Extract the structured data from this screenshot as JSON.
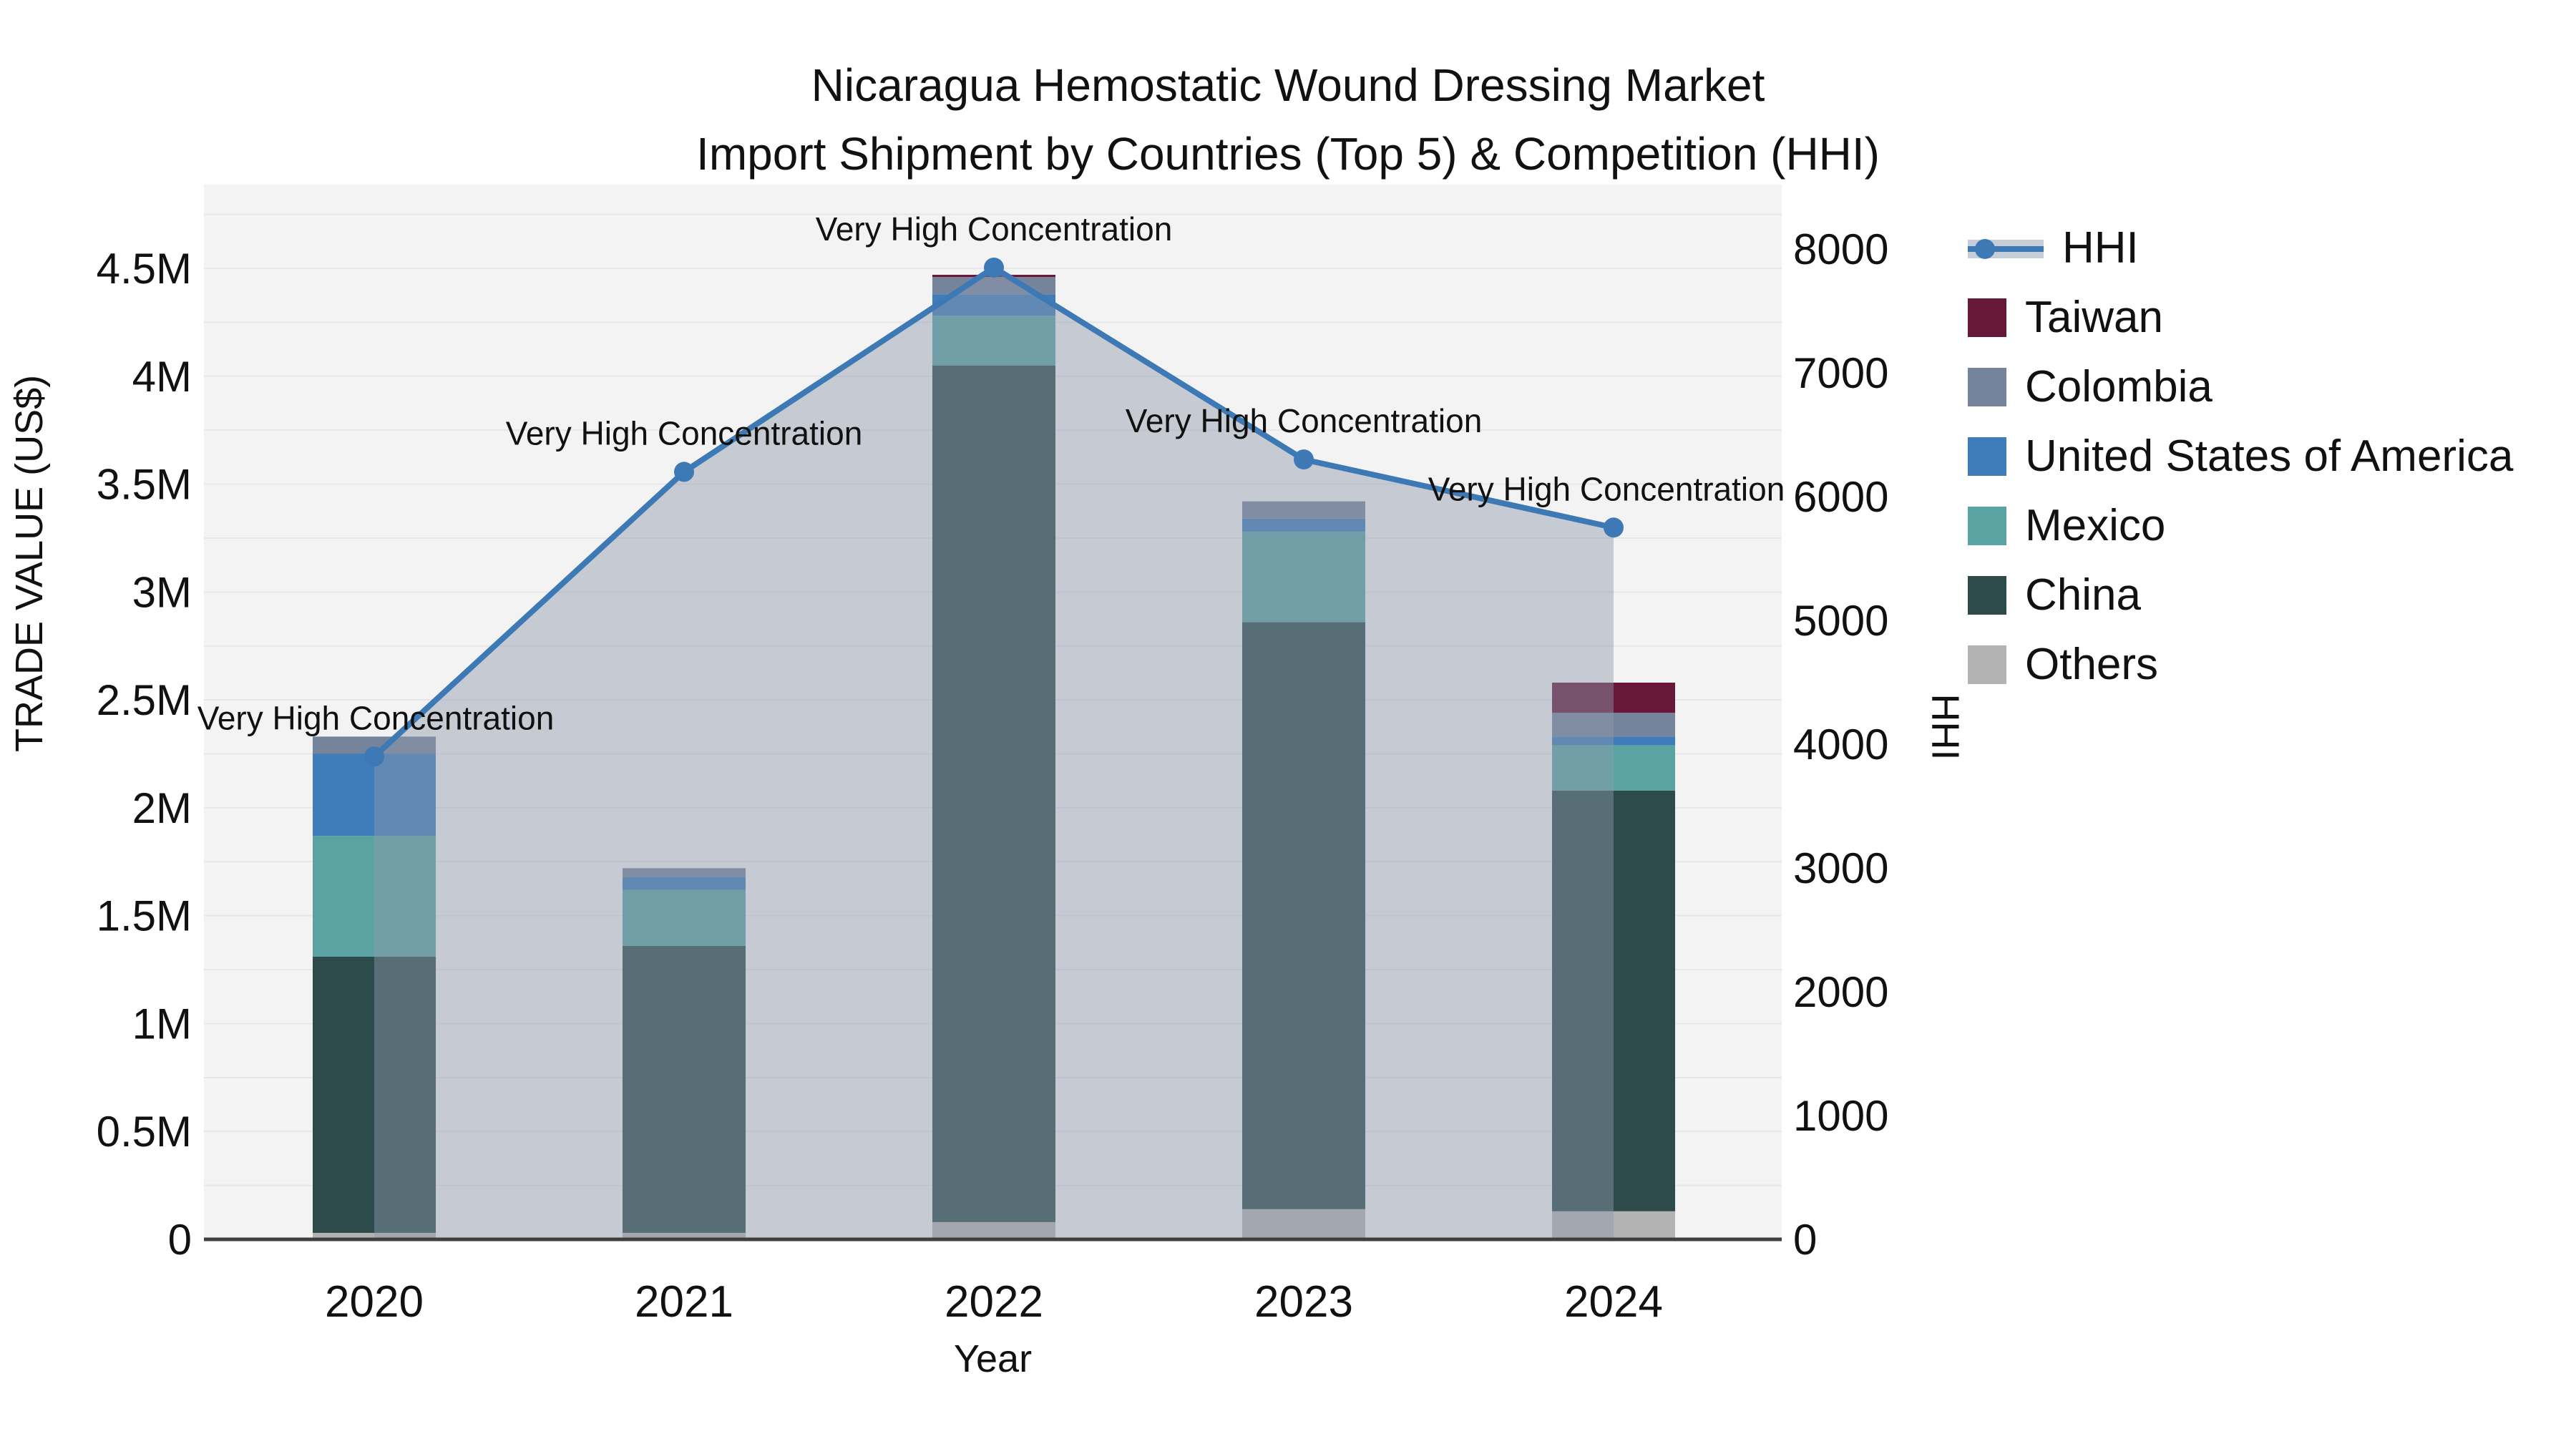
{
  "title": {
    "line1": "Nicaragua Hemostatic Wound Dressing Market",
    "line2": "Import Shipment by Countries (Top 5) & Competition (HHI)"
  },
  "axes": {
    "left": {
      "label": "TRADE VALUE (US$)",
      "tick_values": [
        0,
        500000,
        1000000,
        1500000,
        2000000,
        2500000,
        3000000,
        3500000,
        4000000,
        4500000
      ],
      "tick_labels": [
        "0",
        "0.5M",
        "1M",
        "1.5M",
        "2M",
        "2.5M",
        "3M",
        "3.5M",
        "4M",
        "4.5M"
      ],
      "range": [
        0,
        4500000
      ]
    },
    "right": {
      "label": "HHI",
      "tick_values": [
        0,
        1000,
        2000,
        3000,
        4000,
        5000,
        6000,
        7000,
        8000
      ],
      "tick_labels": [
        "0",
        "1000",
        "2000",
        "3000",
        "4000",
        "5000",
        "6000",
        "7000",
        "8000"
      ],
      "range": [
        0,
        8000
      ]
    },
    "x": {
      "label": "Year",
      "tick_labels": [
        "2020",
        "2021",
        "2022",
        "2023",
        "2024"
      ]
    }
  },
  "legend": {
    "items": [
      {
        "label": "HHI",
        "color": "#3d7ab5",
        "type": "line"
      },
      {
        "label": "Taiwan",
        "color": "#67183a",
        "type": "box"
      },
      {
        "label": "Colombia",
        "color": "#75849b",
        "type": "box"
      },
      {
        "label": "United States of America",
        "color": "#3e7cba",
        "type": "box"
      },
      {
        "label": "Mexico",
        "color": "#5ba3a3",
        "type": "box"
      },
      {
        "label": "China",
        "color": "#2d4b4b",
        "type": "box"
      },
      {
        "label": "Others",
        "color": "#b3b3b3",
        "type": "box"
      }
    ]
  },
  "chart_data": {
    "type": "bar",
    "subtype": "stacked-bars-with-line-overlay",
    "categories": [
      "2020",
      "2021",
      "2022",
      "2023",
      "2024"
    ],
    "series": [
      {
        "name": "Others",
        "color": "#b3b3b3",
        "values": [
          30000,
          30000,
          80000,
          140000,
          130000
        ]
      },
      {
        "name": "China",
        "color": "#2d4b4b",
        "values": [
          1280000,
          1330000,
          3970000,
          2720000,
          1950000
        ]
      },
      {
        "name": "Mexico",
        "color": "#5ba3a3",
        "values": [
          560000,
          260000,
          230000,
          420000,
          210000
        ]
      },
      {
        "name": "United States of America",
        "color": "#3e7cba",
        "values": [
          380000,
          60000,
          100000,
          60000,
          40000
        ]
      },
      {
        "name": "Colombia",
        "color": "#75849b",
        "values": [
          80000,
          40000,
          80000,
          80000,
          110000
        ]
      },
      {
        "name": "Taiwan",
        "color": "#67183a",
        "values": [
          0,
          0,
          10000,
          0,
          140000
        ]
      }
    ],
    "bar_totals": [
      2330000,
      1720000,
      4470000,
      3420000,
      2580000
    ],
    "line": {
      "name": "HHI",
      "color": "#3d7ab5",
      "fill_color": "rgba(141,154,173,0.45)",
      "values": [
        3900,
        6200,
        7850,
        6300,
        5750
      ]
    },
    "annotations": [
      "Very High Concentration",
      "Very High Concentration",
      "Very High Concentration",
      "Very High Concentration",
      "Very High Concentration"
    ],
    "title": "Nicaragua Hemostatic Wound Dressing Market Import Shipment by Countries (Top 5) & Competition (HHI)",
    "xlabel": "Year",
    "ylabel": "TRADE VALUE (US$)",
    "y2label": "HHI",
    "ylim": [
      0,
      4500000
    ],
    "y2lim": [
      0,
      8000
    ],
    "grid": true,
    "legend_position": "right",
    "plot_background": "#f3f3f3",
    "grid_color": "#e6e7e9",
    "axis_line_color": "#3f3f3f",
    "annotation_font_color": "#111111"
  }
}
